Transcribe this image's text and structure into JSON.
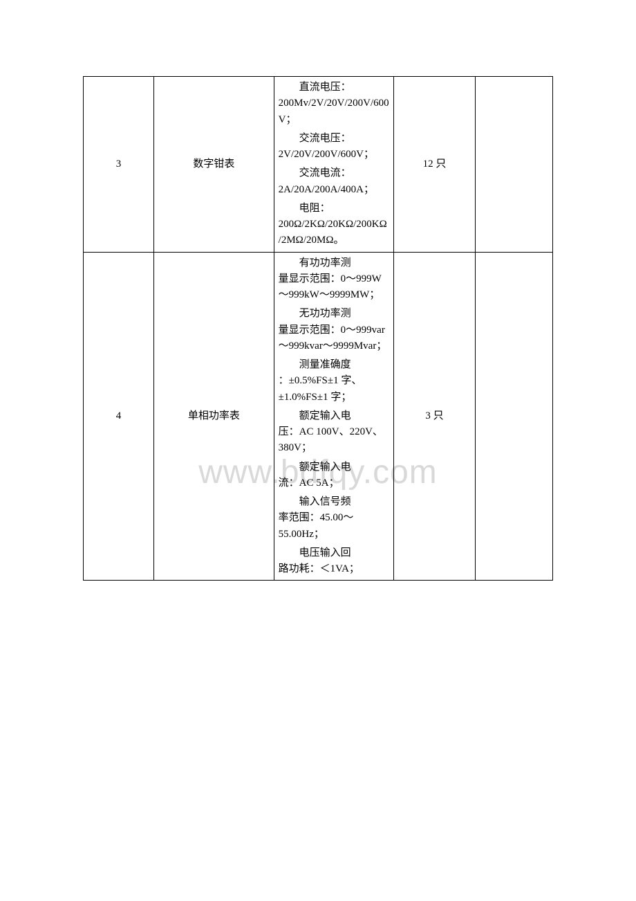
{
  "watermark": "www.bdfqy.com",
  "table": {
    "border_color": "#000000",
    "background_color": "#ffffff",
    "font_size": 15,
    "rows": [
      {
        "num": "3",
        "name": "数字钳表",
        "qty": "12 只",
        "specs": [
          {
            "label": "直流电压：",
            "value": "200Mv/2V/20V/200V/600V；"
          },
          {
            "label": "交流电压：",
            "value": "2V/20V/200V/600V；"
          },
          {
            "label": "交流电流：",
            "value": "2A/20A/200A/400A；"
          },
          {
            "label": "电阻：",
            "value": "200Ω/2KΩ/20KΩ/200KΩ/2MΩ/20MΩ。"
          }
        ]
      },
      {
        "num": "4",
        "name": "单相功率表",
        "qty": "3 只",
        "specs": [
          {
            "label": "有功功率测",
            "value": "量显示范围：0～999W～999kW～9999MW；"
          },
          {
            "label": "无功功率测",
            "value": "量显示范围：0～999var～999kvar～9999Mvar；"
          },
          {
            "label": "测量准确度",
            "value": "：±0.5%FS±1 字、±1.0%FS±1 字；"
          },
          {
            "label": "额定输入电",
            "value": "压：AC 100V、220V、380V；"
          },
          {
            "label": "额定输入电",
            "value": "流：AC 5A；"
          },
          {
            "label": "输入信号频",
            "value": "率范围：45.00～55.00Hz；"
          },
          {
            "label": "电压输入回",
            "value": "路功耗：＜1VA；"
          }
        ]
      }
    ]
  }
}
